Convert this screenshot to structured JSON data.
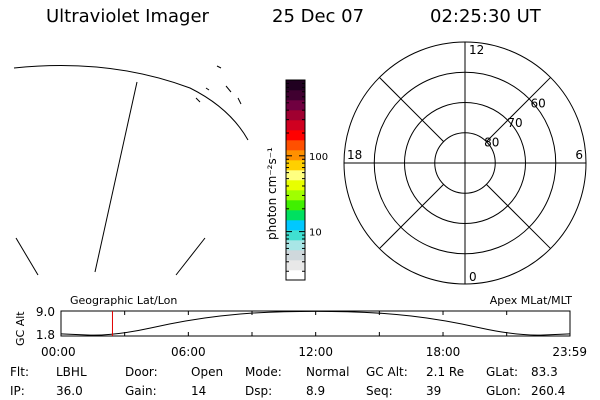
{
  "header": {
    "instrument": "Ultraviolet Imager",
    "date": "25 Dec 07",
    "time": "02:25:30 UT"
  },
  "colorbar": {
    "label": "photon cm⁻²s⁻¹",
    "scale": "log",
    "tick_labels": [
      "100",
      "10"
    ],
    "tick_values": [
      100,
      10
    ],
    "range": [
      2.3,
      1000
    ],
    "colors": [
      "#ffffff",
      "#e8e8e8",
      "#cfd8dc",
      "#a8e6e6",
      "#40e0d0",
      "#00c8ff",
      "#00e060",
      "#40f000",
      "#a0ff00",
      "#e8ff00",
      "#ffff80",
      "#ffd000",
      "#ff9000",
      "#ff5000",
      "#ff0000",
      "#d00020",
      "#a00030",
      "#700040",
      "#400030",
      "#200020"
    ]
  },
  "polar": {
    "mlt_labels": [
      "12",
      "18",
      "6",
      "0"
    ],
    "lat_labels": [
      "60",
      "70",
      "80"
    ],
    "lat_values": [
      60,
      70,
      80
    ],
    "lat_min": 50
  },
  "chart_data": {
    "type": "line",
    "title": "",
    "xlabel": "",
    "ylabel": "GC Alt",
    "x_tick_labels": [
      "00:00",
      "06:00",
      "12:00",
      "18:00",
      "23:59"
    ],
    "y_tick_labels": [
      "9.0",
      "1.8"
    ],
    "ylim": [
      1.8,
      9.0
    ],
    "left_label": "Geographic Lat/Lon",
    "right_label": "Apex MLat/MLT",
    "marker_time": "02:25:30",
    "series": [
      {
        "x_hours": [
          0,
          2.5,
          6,
          9,
          12,
          15,
          18,
          21.5,
          23.98
        ],
        "values": [
          2.4,
          1.8,
          6.5,
          8.6,
          9.0,
          8.6,
          6.5,
          1.8,
          2.4
        ]
      }
    ]
  },
  "info": {
    "row1": [
      {
        "label": "Flt:",
        "value": "LBHL"
      },
      {
        "label": "Door:",
        "value": "Open"
      },
      {
        "label": "Mode:",
        "value": "Normal"
      },
      {
        "label": "GC Alt:",
        "value": "2.1 Re"
      },
      {
        "label": "GLat:",
        "value": "83.3"
      }
    ],
    "row2": [
      {
        "label": "IP:",
        "value": "36.0"
      },
      {
        "label": "Gain:",
        "value": "14"
      },
      {
        "label": "Dsp:",
        "value": "8.9"
      },
      {
        "label": "Seq:",
        "value": "39"
      },
      {
        "label": "GLon:",
        "value": "260.4"
      }
    ]
  }
}
